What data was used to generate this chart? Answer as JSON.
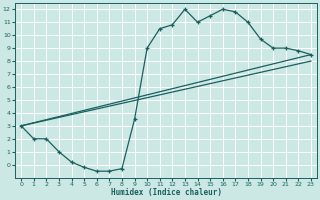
{
  "xlabel": "Humidex (Indice chaleur)",
  "bg_color": "#cce8e4",
  "line_color": "#1a6060",
  "grid_color": "#ffffff",
  "line1_x": [
    0,
    1,
    2,
    3,
    4,
    5,
    6,
    7,
    8,
    9,
    10,
    11,
    12,
    13,
    14,
    15,
    16,
    17,
    18,
    19,
    20,
    21,
    22,
    23
  ],
  "line1_y": [
    3,
    2,
    2,
    1,
    0.2,
    -0.2,
    -0.5,
    -0.5,
    -0.3,
    3.5,
    9.0,
    10.5,
    10.8,
    12.0,
    11.0,
    11.5,
    12.0,
    11.8,
    11.0,
    9.7,
    9.0,
    9.0,
    8.8,
    8.5
  ],
  "line2_x": [
    0,
    23
  ],
  "line2_y": [
    3,
    8.5
  ],
  "line3_x": [
    0,
    23
  ],
  "line3_y": [
    3,
    8.0
  ],
  "xlim": [
    -0.5,
    23.5
  ],
  "ylim": [
    -1,
    12.5
  ],
  "yticks": [
    0,
    1,
    2,
    3,
    4,
    5,
    6,
    7,
    8,
    9,
    10,
    11,
    12
  ],
  "xticks": [
    0,
    1,
    2,
    3,
    4,
    5,
    6,
    7,
    8,
    9,
    10,
    11,
    12,
    13,
    14,
    15,
    16,
    17,
    18,
    19,
    20,
    21,
    22,
    23
  ],
  "tick_fontsize": 4.5,
  "xlabel_fontsize": 5.5
}
